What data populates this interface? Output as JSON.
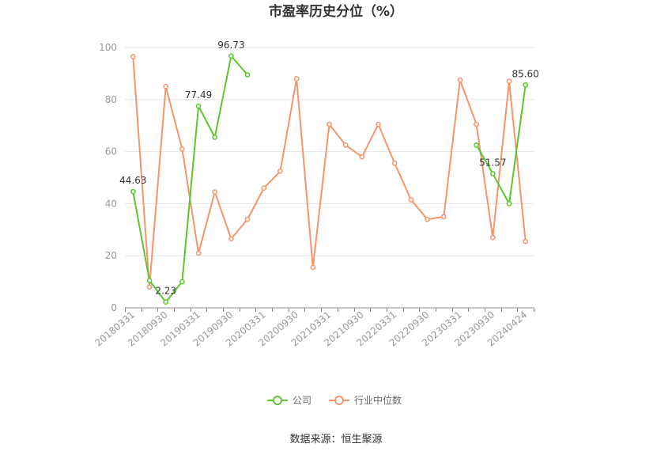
{
  "chart_data": {
    "type": "line",
    "title": "市盈率历史分位（%）",
    "source": "数据来源：恒生聚源",
    "ylim": [
      0,
      100
    ],
    "yticks": [
      0,
      20,
      40,
      60,
      80,
      100
    ],
    "grid": true,
    "legend_position": "bottom",
    "categories": [
      "20180331",
      "20180630",
      "20180930",
      "20181231",
      "20190331",
      "20190630",
      "20190930",
      "20191231",
      "20200331",
      "20200630",
      "20200930",
      "20201231",
      "20210331",
      "20210630",
      "20210930",
      "20211231",
      "20220331",
      "20220630",
      "20220930",
      "20221231",
      "20230331",
      "20230630",
      "20230930",
      "20231231",
      "20240424"
    ],
    "xtick_labels": [
      "20180331",
      "20180930",
      "20190331",
      "20190930",
      "20200331",
      "20200930",
      "20210331",
      "20210930",
      "20220331",
      "20220930",
      "20230331",
      "20230930",
      "20240424"
    ],
    "series": [
      {
        "name": "公司",
        "color": "#5cc62d",
        "values": [
          44.63,
          10.5,
          2.23,
          10,
          77.49,
          65.5,
          96.73,
          89.5,
          null,
          null,
          null,
          null,
          null,
          null,
          null,
          null,
          null,
          null,
          null,
          null,
          null,
          62.5,
          51.57,
          40,
          85.6
        ],
        "labels": [
          {
            "index": 0,
            "text": "44.63"
          },
          {
            "index": 2,
            "text": "2.23"
          },
          {
            "index": 4,
            "text": "77.49"
          },
          {
            "index": 6,
            "text": "96.73"
          },
          {
            "index": 22,
            "text": "51.57"
          },
          {
            "index": 24,
            "text": "85.60"
          }
        ]
      },
      {
        "name": "行业中位数",
        "color": "#f4956a",
        "values": [
          96.5,
          8,
          85,
          61,
          21,
          44.5,
          26.5,
          34,
          46,
          52.5,
          88,
          15.5,
          70.5,
          62.5,
          58,
          70.5,
          55.5,
          41.5,
          34,
          35,
          87.5,
          70.5,
          27,
          87,
          25.5
        ]
      }
    ]
  }
}
